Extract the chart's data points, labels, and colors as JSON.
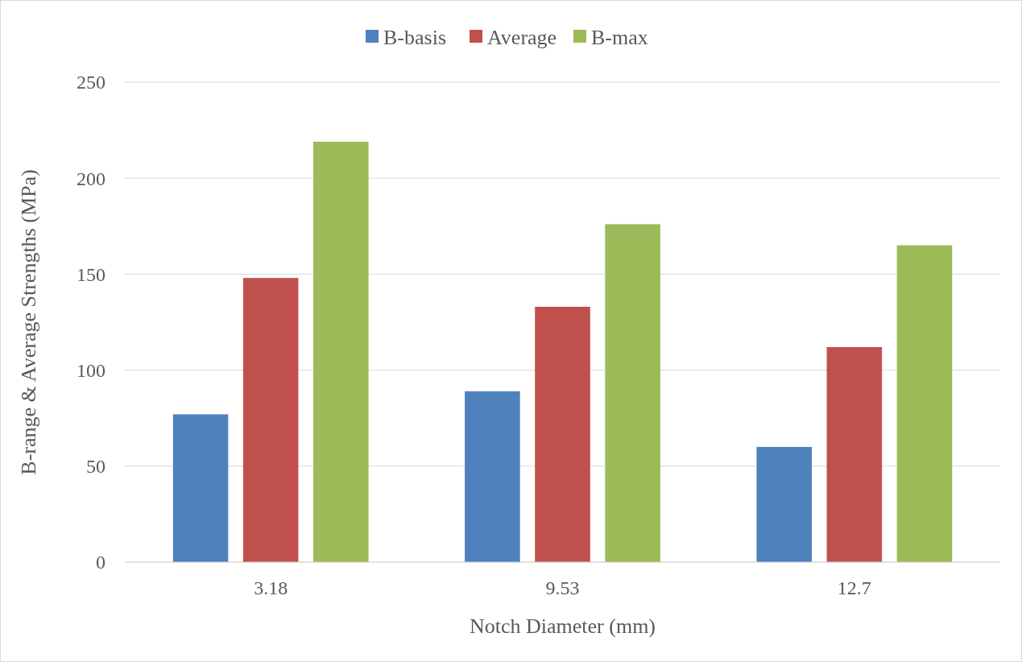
{
  "chart_data": {
    "type": "bar",
    "xlabel": "Notch Diameter (mm)",
    "ylabel": "B-range & Average Strengths (MPa)",
    "categories": [
      "3.18",
      "9.53",
      "12.7"
    ],
    "series": [
      {
        "name": "B-basis",
        "color": "#4f81bd",
        "values": [
          77,
          89,
          60
        ]
      },
      {
        "name": "Average",
        "color": "#c0504d",
        "values": [
          148,
          133,
          112
        ]
      },
      {
        "name": "B-max",
        "color": "#9bbb59",
        "values": [
          219,
          176,
          165
        ]
      }
    ],
    "ylim": [
      0,
      250
    ],
    "yticks": [
      0,
      50,
      100,
      150,
      200,
      250
    ],
    "grid": "y",
    "legend": "top"
  }
}
